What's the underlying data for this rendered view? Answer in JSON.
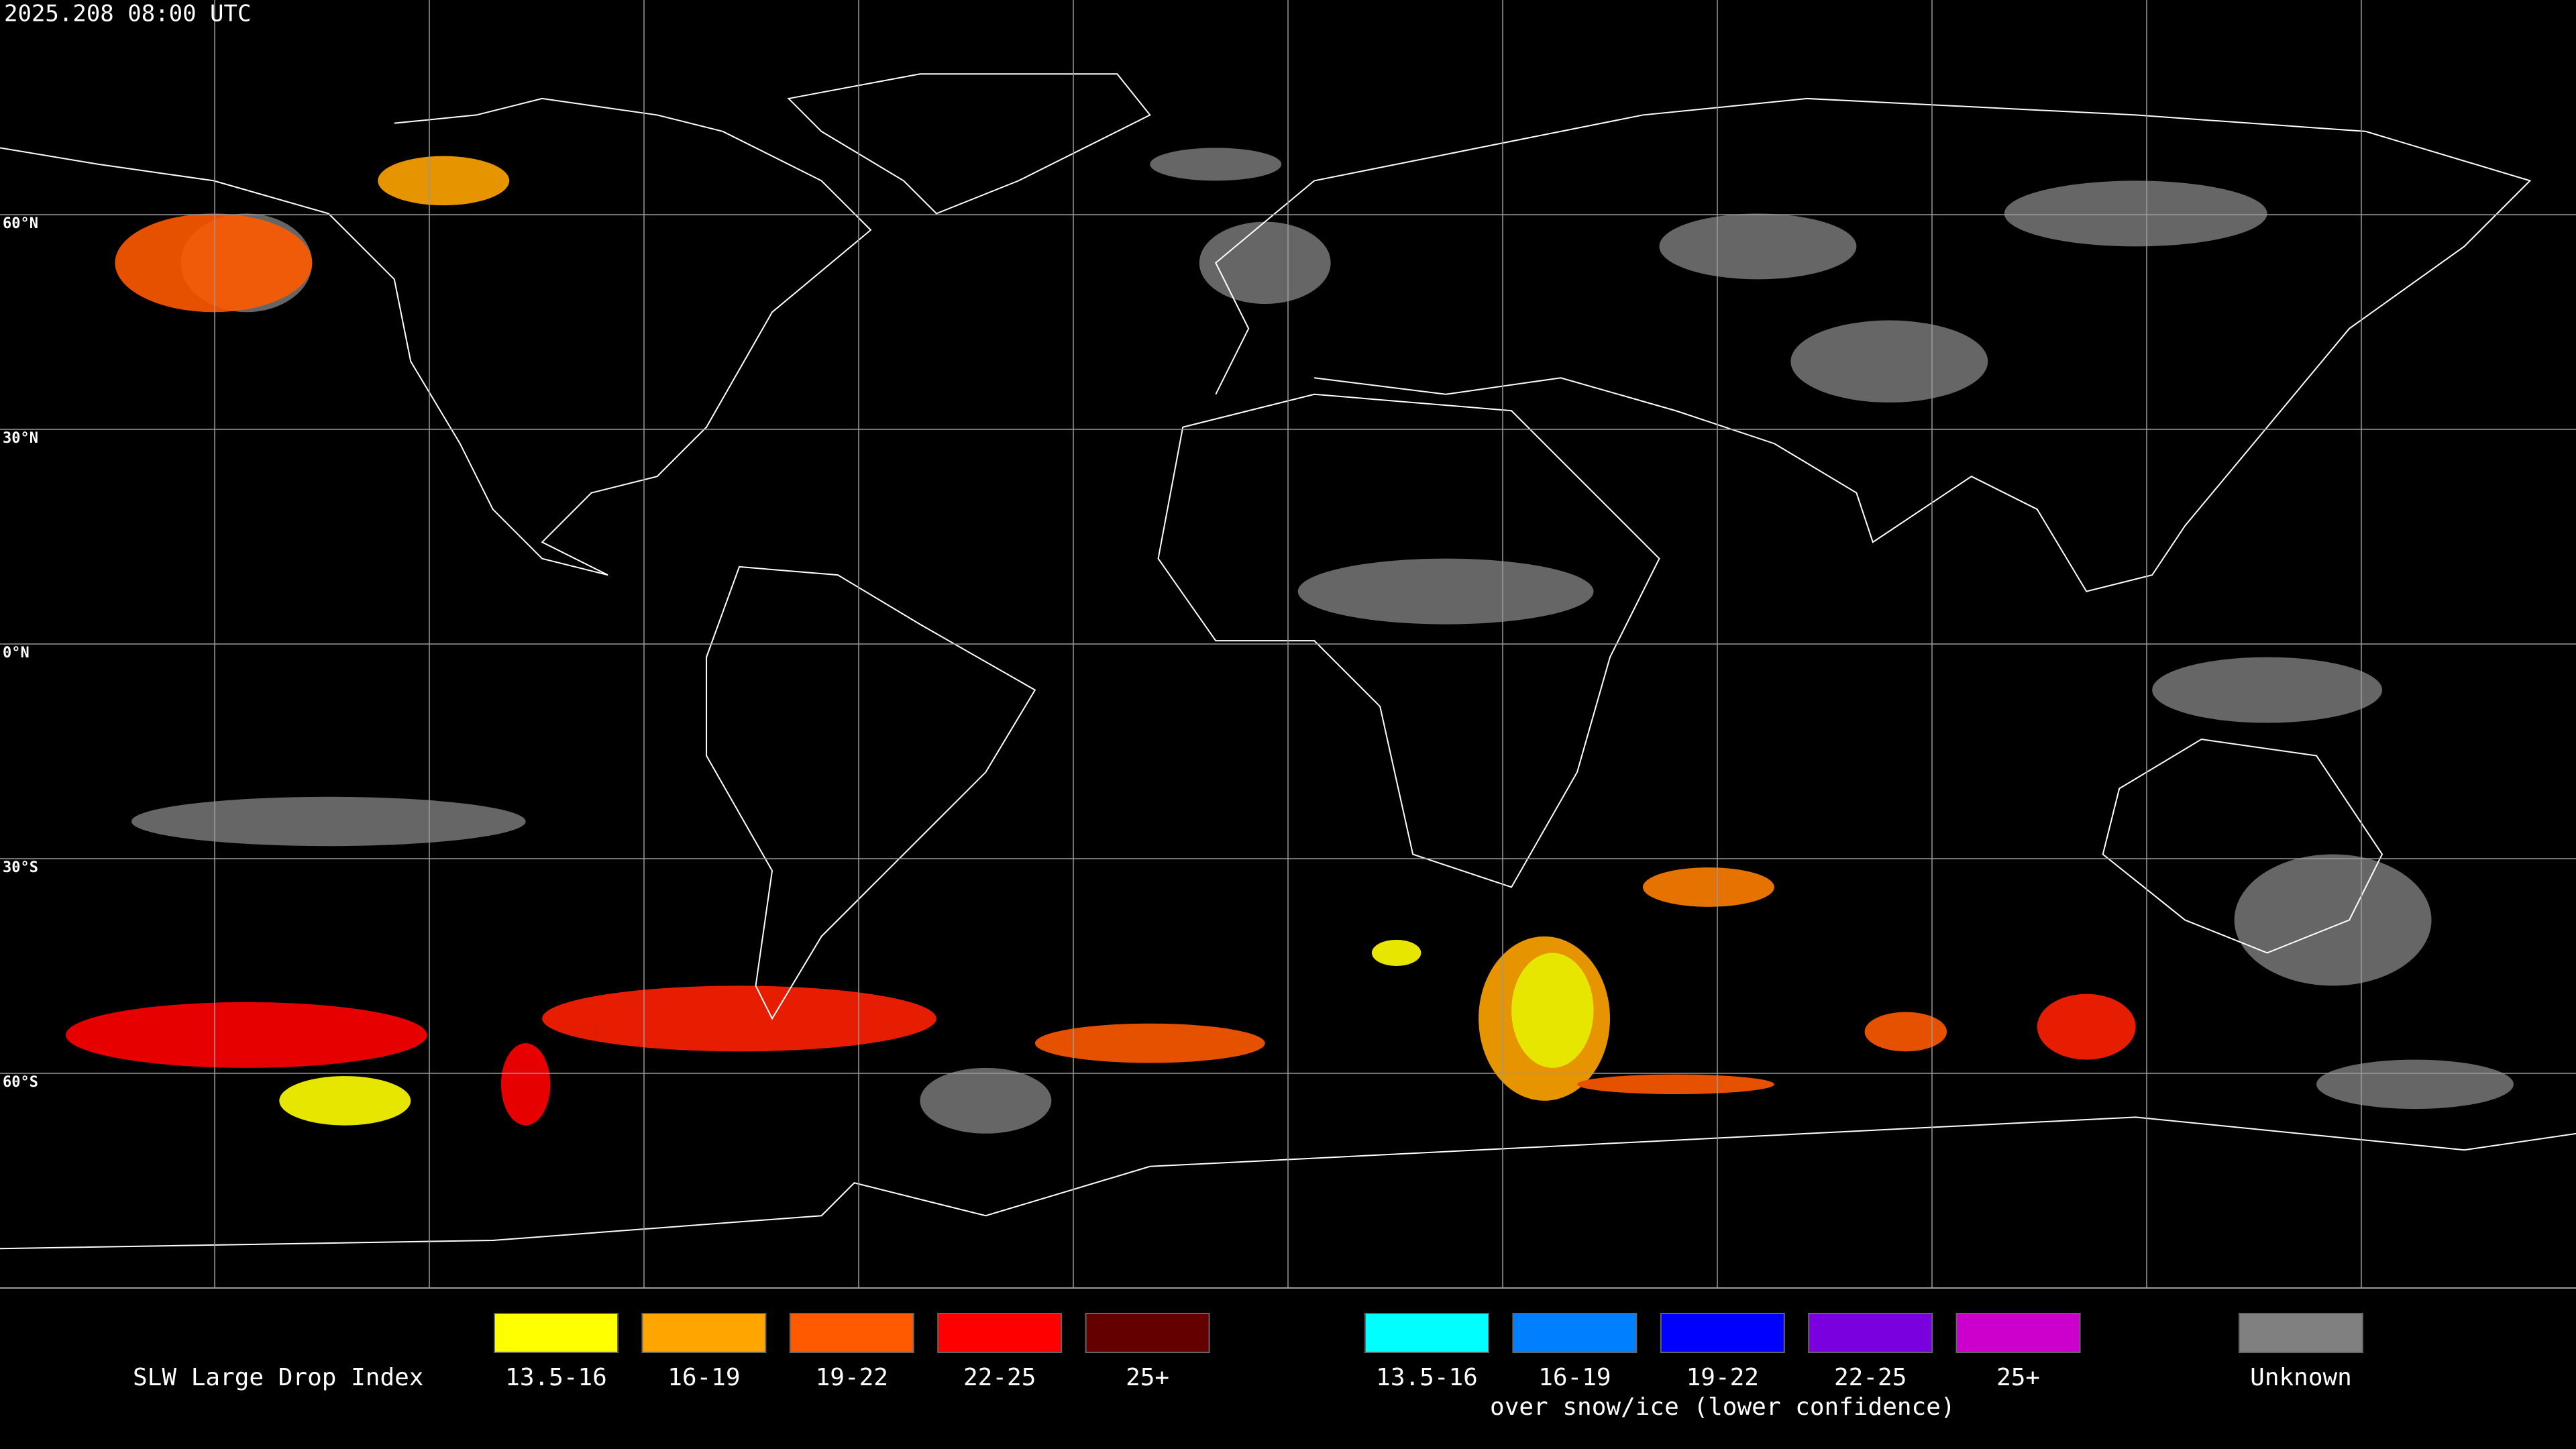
{
  "header": {
    "timestamp": "2025.208 08:00 UTC"
  },
  "map": {
    "latitude_labels": [
      "60°N",
      "30°N",
      "0°N",
      "30°S",
      "60°S"
    ]
  },
  "legend": {
    "title": "SLW Large Drop Index",
    "groups": [
      {
        "items": [
          {
            "label": "13.5-16",
            "color": "#ffff00"
          },
          {
            "label": "16-19",
            "color": "#ffa500"
          },
          {
            "label": "19-22",
            "color": "#ff5a00"
          },
          {
            "label": "22-25",
            "color": "#ff0000"
          },
          {
            "label": "25+",
            "color": "#640000"
          }
        ]
      },
      {
        "items": [
          {
            "label": "13.5-16",
            "color": "#00ffff"
          },
          {
            "label": "16-19",
            "color": "#0080ff"
          },
          {
            "label": "19-22",
            "color": "#0000ff"
          },
          {
            "label": "22-25",
            "color": "#7a00e0"
          },
          {
            "label": "25+",
            "color": "#cc00cc"
          }
        ],
        "caption": "over snow/ice (lower confidence)"
      }
    ],
    "unknown": {
      "label": "Unknown",
      "color": "#808080"
    }
  }
}
